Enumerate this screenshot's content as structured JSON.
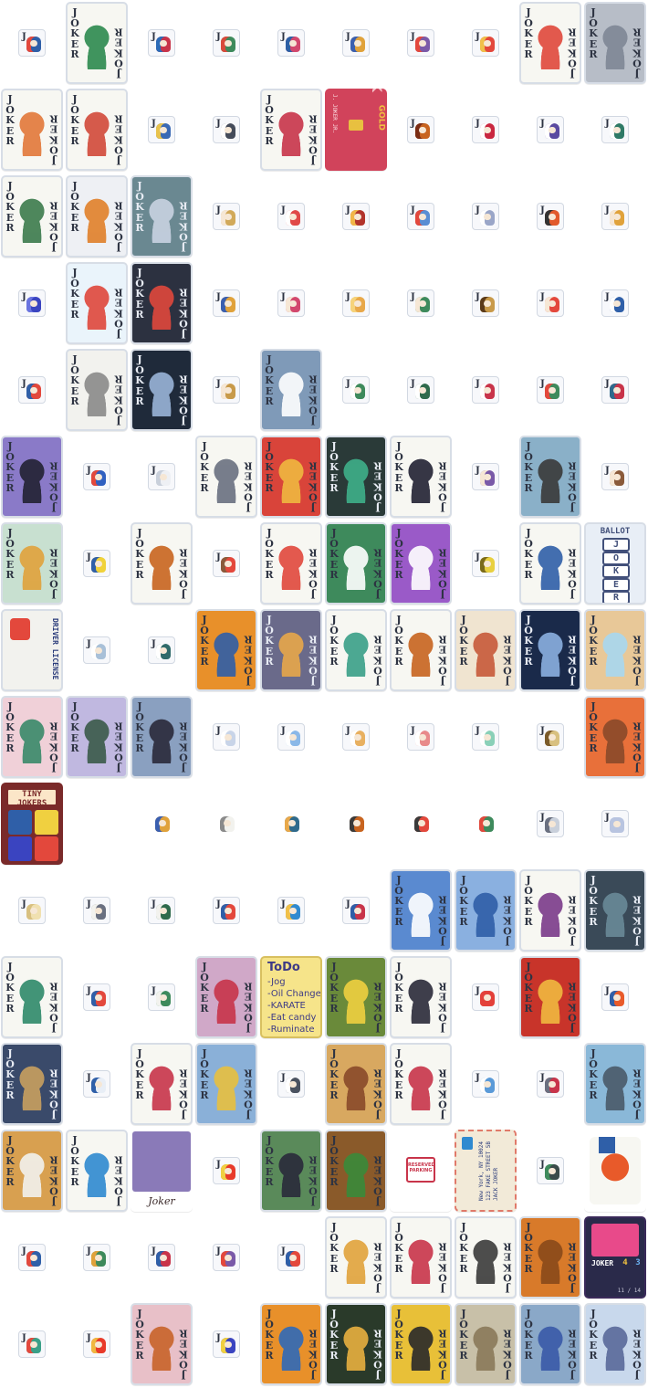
{
  "sheet": {
    "rank_label": "JOKER",
    "tile_letter": "J",
    "rows": [
      [
        {
          "kind": "tile",
          "color": "#2f5fa8",
          "accent": "#e3483c"
        },
        {
          "kind": "card",
          "bg": "#f7f7f2",
          "fg": "#2d8a4e",
          "icon": "joker-classic-icon"
        },
        {
          "kind": "tile",
          "color": "#c8344a",
          "accent": "#2b6bb8"
        },
        {
          "kind": "tile",
          "color": "#3e8a5c",
          "accent": "#d94a3b"
        },
        {
          "kind": "tile",
          "color": "#d2486d",
          "accent": "#2c5fa5"
        },
        {
          "kind": "tile",
          "color": "#e0a23b",
          "accent": "#3a5fb0"
        },
        {
          "kind": "tile",
          "color": "#7a5aa8",
          "accent": "#e3483c"
        },
        {
          "kind": "tile",
          "color": "#e3483c",
          "accent": "#f0c04a"
        },
        {
          "kind": "card",
          "bg": "#f7f7f2",
          "fg": "#e0483c",
          "icon": "clown-icon"
        },
        {
          "kind": "card",
          "bg": "#b7bdc7",
          "fg": "#7f8796",
          "icon": "stone-joker-icon"
        }
      ],
      [
        {
          "kind": "card",
          "bg": "#f7f7f2",
          "fg": "#e2783a",
          "icon": "jester-full-icon"
        },
        {
          "kind": "card",
          "bg": "#f7f7f2",
          "fg": "#d24a3a",
          "icon": "jester-mirror-icon"
        },
        {
          "kind": "tile",
          "color": "#3a6ab5",
          "accent": "#e8c24c"
        },
        {
          "kind": "tile",
          "color": "#454c5a",
          "accent": "#ffffff"
        },
        {
          "kind": "card",
          "bg": "#f7f7f2",
          "fg": "#c8344a",
          "icon": "mime-icon"
        },
        {
          "kind": "bankcard",
          "bg": "#d1435b",
          "text": "BANK",
          "sub": "GOLD",
          "number": "J. JOKER JR."
        },
        {
          "kind": "tile",
          "color": "#c8641f",
          "accent": "#7a2c14"
        },
        {
          "kind": "tile",
          "color": "#c92740",
          "accent": "#ffffff"
        },
        {
          "kind": "tile",
          "color": "#5a4aa0",
          "accent": "#ffffff"
        },
        {
          "kind": "tile",
          "color": "#2f7a66",
          "accent": "#ffffff"
        }
      ],
      [
        {
          "kind": "card",
          "bg": "#f7f7f2",
          "fg": "#3b7a4c",
          "icon": "bard-icon"
        },
        {
          "kind": "card",
          "bg": "#eef0f4",
          "fg": "#e0802a",
          "icon": "scarf-icon"
        },
        {
          "kind": "card",
          "bg": "#6a8891",
          "fg": "#c9d3e2",
          "icon": "rock-fall-icon"
        },
        {
          "kind": "tile",
          "color": "#d1a95a",
          "accent": "#f6e7d5"
        },
        {
          "kind": "tile",
          "color": "#e04848",
          "accent": "#ffffff"
        },
        {
          "kind": "tile",
          "color": "#b2342c",
          "accent": "#f1b648"
        },
        {
          "kind": "tile",
          "color": "#5a8ed4",
          "accent": "#e3483c"
        },
        {
          "kind": "tile",
          "color": "#9aa6c8",
          "accent": "#ffffff"
        },
        {
          "kind": "tile",
          "color": "#e25a2c",
          "accent": "#333333"
        },
        {
          "kind": "tile",
          "color": "#e0a23b",
          "accent": "#f6e7d5"
        }
      ],
      [
        {
          "kind": "tile",
          "color": "#3a44c0",
          "accent": "#6a74e0"
        },
        {
          "kind": "card",
          "bg": "#eaf4fb",
          "fg": "#e0483c",
          "icon": "jester-bust-icon"
        },
        {
          "kind": "card",
          "bg": "#2c3140",
          "fg": "#e0483c",
          "icon": "shadow-face-icon"
        },
        {
          "kind": "tile",
          "color": "#e0a23b",
          "accent": "#3a5fb0"
        },
        {
          "kind": "tile",
          "color": "#d2486d",
          "accent": "#f6e7d5"
        },
        {
          "kind": "tile",
          "color": "#e8a84a",
          "accent": "#f6d37a"
        },
        {
          "kind": "tile",
          "color": "#3e8a5c",
          "accent": "#f6e7d5"
        },
        {
          "kind": "tile",
          "color": "#c89a4a",
          "accent": "#5a3a1a"
        },
        {
          "kind": "tile",
          "color": "#e3483c",
          "accent": "#f6e7d5"
        },
        {
          "kind": "tile",
          "color": "#2f5fa8",
          "accent": "#ffffff"
        }
      ],
      [
        {
          "kind": "tile",
          "color": "#e3483c",
          "accent": "#2f5fa8"
        },
        {
          "kind": "card",
          "bg": "#f2f2ee",
          "fg": "#8a8a8a",
          "icon": "signature-icon"
        },
        {
          "kind": "card",
          "bg": "#1f2a3a",
          "fg": "#9ab4d8",
          "icon": "starfield-icon"
        },
        {
          "kind": "tile",
          "color": "#c89a4a",
          "accent": "#f6e7d5"
        },
        {
          "kind": "card",
          "bg": "#7f9ab8",
          "fg": "#ffffff",
          "icon": "club-suit-icon"
        },
        {
          "kind": "tile",
          "color": "#3e8a5c",
          "accent": "#ffffff"
        },
        {
          "kind": "tile",
          "color": "#2f6a4c",
          "accent": "#ffffff"
        },
        {
          "kind": "tile",
          "color": "#c8344a",
          "accent": "#ffffff"
        },
        {
          "kind": "tile",
          "color": "#3e8a5c",
          "accent": "#e3483c"
        },
        {
          "kind": "tile",
          "color": "#c8344a",
          "accent": "#2f6a8c"
        }
      ],
      [
        {
          "kind": "card",
          "bg": "#8a7ac8",
          "fg": "#222233",
          "icon": "eight-ball-icon"
        },
        {
          "kind": "tile",
          "color": "#3060c0",
          "accent": "#e3483c"
        },
        {
          "kind": "tile",
          "color": "#eef0f4",
          "accent": "#c9d0db"
        },
        {
          "kind": "card",
          "bg": "#f7f7f2",
          "fg": "#6a7080",
          "icon": "astronaut-icon"
        },
        {
          "kind": "card",
          "bg": "#d9443a",
          "fg": "#f0b840",
          "icon": "matador-icon"
        },
        {
          "kind": "card",
          "bg": "#2a3a38",
          "fg": "#3fb08a",
          "icon": "dagger-icon"
        },
        {
          "kind": "card",
          "bg": "#f7f7f2",
          "fg": "#222233",
          "icon": "top-hat-icon"
        },
        {
          "kind": "tile",
          "color": "#7a5aa8",
          "accent": "#f6e7d5"
        },
        {
          "kind": "card",
          "bg": "#8ab0c8",
          "fg": "#3a3a3a",
          "icon": "road-sign-icon"
        },
        {
          "kind": "tile",
          "color": "#8a5a3a",
          "accent": "#f6e7d5"
        }
      ],
      [
        {
          "kind": "card",
          "bg": "#c8e0d0",
          "fg": "#e0a23b",
          "icon": "sunflower-icon"
        },
        {
          "kind": "tile",
          "color": "#f0d23a",
          "accent": "#2f5fa8"
        },
        {
          "kind": "card",
          "bg": "#f7f7f2",
          "fg": "#c8641f",
          "icon": "king-joker-icon"
        },
        {
          "kind": "tile",
          "color": "#e3483c",
          "accent": "#8a5a3a"
        },
        {
          "kind": "card",
          "bg": "#f7f7f2",
          "fg": "#e0483c",
          "icon": "flame-jester-icon"
        },
        {
          "kind": "card",
          "bg": "#3e8a5c",
          "fg": "#ffffff",
          "icon": "dice-icon"
        },
        {
          "kind": "card",
          "bg": "#9a5ac8",
          "fg": "#ffffff",
          "icon": "glove-icon"
        },
        {
          "kind": "tile",
          "color": "#e8d040",
          "accent": "#7a6a1a"
        },
        {
          "kind": "card",
          "bg": "#f7f7f2",
          "fg": "#2f5fa8",
          "icon": "helmet-icon"
        },
        {
          "kind": "ballot",
          "bg": "#e8eef6",
          "title": "BALLOT",
          "letters": [
            "J",
            "O",
            "K",
            "E",
            "R"
          ]
        }
      ],
      [
        {
          "kind": "license",
          "bg": "#f2f2ee",
          "title": "DRIVER LICENSE"
        },
        {
          "kind": "tile",
          "color": "#a8c0d8",
          "accent": "#ffffff"
        },
        {
          "kind": "tile",
          "color": "#2f6a6a",
          "accent": "#ffffff"
        },
        {
          "kind": "card",
          "bg": "#e8902a",
          "fg": "#2f5fa8",
          "icon": "jester-gold-icon"
        },
        {
          "kind": "card",
          "bg": "#6a6a8a",
          "fg": "#e8a84a",
          "icon": "sunset-icon"
        },
        {
          "kind": "card",
          "bg": "#f7f7f2",
          "fg": "#3aa088",
          "icon": "party-jester-icon"
        },
        {
          "kind": "card",
          "bg": "#f7f7f2",
          "fg": "#c8641f",
          "icon": "tiki-icon"
        },
        {
          "kind": "card",
          "bg": "#f0e4d0",
          "fg": "#c85a3a",
          "icon": "sketch-joker-icon"
        },
        {
          "kind": "card",
          "bg": "#1a2a4a",
          "fg": "#8ab0e0",
          "icon": "satellite-icon"
        },
        {
          "kind": "card",
          "bg": "#e8c898",
          "fg": "#a8d8f0",
          "icon": "diamond-icon"
        }
      ],
      [
        {
          "kind": "card",
          "bg": "#f0d0d8",
          "fg": "#3a8a6a",
          "icon": "gem-stone-icon"
        },
        {
          "kind": "card",
          "bg": "#c0b8e0",
          "fg": "#3a5a4a",
          "icon": "arrowhead-icon"
        },
        {
          "kind": "card",
          "bg": "#8aa0c0",
          "fg": "#2a2a3a",
          "icon": "black-hole-icon"
        },
        {
          "kind": "tile",
          "color": "#c8d4e8",
          "accent": "#ffffff"
        },
        {
          "kind": "tile",
          "color": "#8ab8e8",
          "accent": "#ffffff"
        },
        {
          "kind": "tile",
          "color": "#e8b060",
          "accent": "#ffffff"
        },
        {
          "kind": "tile",
          "color": "#e88a8a",
          "accent": "#ffffff"
        },
        {
          "kind": "tile",
          "color": "#8ad0b8",
          "accent": "#ffffff"
        },
        {
          "kind": "tile",
          "color": "#d8c080",
          "accent": "#7a5a2a"
        },
        {
          "kind": "card",
          "bg": "#e8703a",
          "fg": "#8a4a2a",
          "icon": "cowboy-boot-icon"
        }
      ],
      [
        {
          "kind": "tiny",
          "bg": "#7a2a2a",
          "title": "TINY JOKERS"
        },
        {
          "kind": "empty"
        },
        {
          "kind": "sprite",
          "color": "#e0a23b",
          "accent": "#3a5fb0"
        },
        {
          "kind": "sprite",
          "color": "#f2f2ee",
          "accent": "#8a8a8a"
        },
        {
          "kind": "sprite",
          "color": "#2f6a8c",
          "accent": "#e8a84a"
        },
        {
          "kind": "sprite",
          "color": "#c8641f",
          "accent": "#3a3a3a"
        },
        {
          "kind": "sprite",
          "color": "#e3483c",
          "accent": "#3a3a3a"
        },
        {
          "kind": "sprite",
          "color": "#3e8a5c",
          "accent": "#e3483c"
        },
        {
          "kind": "tile",
          "color": "#c9d0db",
          "accent": "#6a7080"
        },
        {
          "kind": "tile",
          "color": "#b8c4e0",
          "accent": "#b8c4e0"
        }
      ],
      [
        {
          "kind": "tile",
          "color": "#f0e0b0",
          "accent": "#d8c080"
        },
        {
          "kind": "tile",
          "color": "#6a7080",
          "accent": "#f2f2ee"
        },
        {
          "kind": "tile",
          "color": "#2f6a4c",
          "accent": "#f2f2ee"
        },
        {
          "kind": "tile",
          "color": "#e3483c",
          "accent": "#2f5fa8"
        },
        {
          "kind": "tile",
          "color": "#2f8ad0",
          "accent": "#f0c04a"
        },
        {
          "kind": "tile",
          "color": "#c8344a",
          "accent": "#2f5fa8"
        },
        {
          "kind": "card",
          "bg": "#5a8ad0",
          "fg": "#ffffff",
          "icon": "splash-icon"
        },
        {
          "kind": "card",
          "bg": "#8ab0e0",
          "fg": "#2f5fa8",
          "icon": "blue-jester-icon"
        },
        {
          "kind": "card",
          "bg": "#f7f7f2",
          "fg": "#7a3a8a",
          "icon": "hooded-clown-icon"
        },
        {
          "kind": "card",
          "bg": "#3a4a58",
          "fg": "#6a8a98",
          "icon": "ghost-icon"
        }
      ],
      [
        {
          "kind": "card",
          "bg": "#f7f7f2",
          "fg": "#2f8a6a",
          "icon": "pirate-jester-icon"
        },
        {
          "kind": "tile",
          "color": "#e3483c",
          "accent": "#2f5fa8"
        },
        {
          "kind": "tile",
          "color": "#3e8a5c",
          "accent": "#f2f2ee"
        },
        {
          "kind": "card",
          "bg": "#d0a8c8",
          "fg": "#c8344a",
          "icon": "compass-icon"
        },
        {
          "kind": "todo",
          "bg": "#f6e48a",
          "title": "ToDo",
          "items": [
            "-Jog",
            "-Oil Change",
            "-KARATE",
            "-Eat candy",
            "-Ruminate"
          ]
        },
        {
          "kind": "card",
          "bg": "#6a8a3a",
          "fg": "#f0d040",
          "icon": "banana-icon"
        },
        {
          "kind": "card",
          "bg": "#f7f7f2",
          "fg": "#2a2a3a",
          "icon": "hoodie-icon"
        },
        {
          "kind": "tile",
          "color": "#e3403a",
          "accent": "#e3403a"
        },
        {
          "kind": "card",
          "bg": "#c8342a",
          "fg": "#f0b840",
          "icon": "fire-jester-icon"
        },
        {
          "kind": "tile",
          "color": "#e85a2a",
          "accent": "#2f5fa8"
        }
      ],
      [
        {
          "kind": "card",
          "bg": "#3a4a6a",
          "fg": "#c8a060",
          "icon": "curtain-table-icon"
        },
        {
          "kind": "tile",
          "color": "#e8eef6",
          "accent": "#2f5fa8"
        },
        {
          "kind": "card",
          "bg": "#f7f7f2",
          "fg": "#c8344a",
          "icon": "vampire-icon"
        },
        {
          "kind": "card",
          "bg": "#8ab0d8",
          "fg": "#e8c040",
          "icon": "alley-icon"
        },
        {
          "kind": "tile",
          "color": "#4a5260",
          "accent": "#ffffff"
        },
        {
          "kind": "card",
          "bg": "#d8a860",
          "fg": "#8a4a2a",
          "icon": "hobo-clown-icon"
        },
        {
          "kind": "card",
          "bg": "#f7f7f2",
          "fg": "#c8344a",
          "icon": "crowned-joker-icon"
        },
        {
          "kind": "tile",
          "color": "#5a9ad8",
          "accent": "#ffffff"
        },
        {
          "kind": "tile",
          "color": "#c8344a",
          "accent": "#6a7080"
        },
        {
          "kind": "card",
          "bg": "#8ab8d8",
          "fg": "#4a5a6a",
          "icon": "monolith-icon"
        }
      ],
      [
        {
          "kind": "card",
          "bg": "#d8a050",
          "fg": "#f2f2ee",
          "icon": "egg-face-icon"
        },
        {
          "kind": "card",
          "bg": "#f7f7f2",
          "fg": "#2f8ad0",
          "icon": "wrestler-icon"
        },
        {
          "kind": "photo",
          "bg": "#8a7ab8",
          "caption": "Joker"
        },
        {
          "kind": "tile",
          "color": "#e83a2a",
          "accent": "#f0d040"
        },
        {
          "kind": "card",
          "bg": "#5a8a5a",
          "fg": "#2a2a3a",
          "icon": "bean-icon"
        },
        {
          "kind": "card",
          "bg": "#8a5a2a",
          "fg": "#3a8a3a",
          "icon": "vines-icon"
        },
        {
          "kind": "parking",
          "bg": "#f7f7f2",
          "text": "RESERVED PARKING"
        },
        {
          "kind": "letter",
          "bg": "#f2ead8",
          "name": "JACK JOKER",
          "addr1": "123 FAKE STREET 5B",
          "addr2": "New York, NY 10024"
        },
        {
          "kind": "tile",
          "color": "#3a4a4a",
          "accent": "#3e8a5c"
        },
        {
          "kind": "poster",
          "bg": "#f7f7f2",
          "fg": "#e3483c",
          "icon": "joker-letters-icon"
        }
      ],
      [
        {
          "kind": "tile",
          "color": "#2f5fa8",
          "accent": "#e3483c"
        },
        {
          "kind": "tile",
          "color": "#3e8a5c",
          "accent": "#e0a23b"
        },
        {
          "kind": "tile",
          "color": "#c8344a",
          "accent": "#2f5fa8"
        },
        {
          "kind": "tile",
          "color": "#7a5aa8",
          "accent": "#e3483c"
        },
        {
          "kind": "tile",
          "color": "#e3483c",
          "accent": "#2f5fa8"
        },
        {
          "kind": "card",
          "bg": "#f7f7f2",
          "fg": "#e0a23b",
          "icon": "lucky-cat-icon"
        },
        {
          "kind": "card",
          "bg": "#f7f7f2",
          "fg": "#c8344a",
          "icon": "baseball-icon"
        },
        {
          "kind": "card",
          "bg": "#f7f7f2",
          "fg": "#3a3a3a",
          "icon": "bull-icon"
        },
        {
          "kind": "card",
          "bg": "#d87a2a",
          "fg": "#8a4a1a",
          "icon": "bottle-icon"
        },
        {
          "kind": "stats",
          "bg": "#e84a8a",
          "title": "JOKER",
          "level": "4",
          "power": "3",
          "count": "11 / 14"
        }
      ],
      [
        {
          "kind": "tile",
          "color": "#3aa088",
          "accent": "#e3483c"
        },
        {
          "kind": "tile",
          "color": "#e83a2a",
          "accent": "#f0b840"
        },
        {
          "kind": "card",
          "bg": "#e8c0c8",
          "fg": "#c8642a",
          "icon": "ramen-icon"
        },
        {
          "kind": "tile",
          "color": "#3a44c0",
          "accent": "#f0d040"
        },
        {
          "kind": "card",
          "bg": "#e8902a",
          "fg": "#2f6ab8",
          "icon": "pants-icon"
        },
        {
          "kind": "card",
          "bg": "#2a3a2a",
          "fg": "#e8b040",
          "icon": "campfire-icon"
        },
        {
          "kind": "card",
          "bg": "#e8c038",
          "fg": "#2a2a2a",
          "icon": "smiley-icon"
        },
        {
          "kind": "card",
          "bg": "#c8c0a8",
          "fg": "#8a7a5a",
          "icon": "mummy-icon"
        },
        {
          "kind": "card",
          "bg": "#8aa8c8",
          "fg": "#3a5aa8",
          "icon": "walkie-talkie-icon"
        },
        {
          "kind": "card",
          "bg": "#c8d8ec",
          "fg": "#5a6a9a",
          "icon": "castle-icon"
        }
      ]
    ]
  }
}
